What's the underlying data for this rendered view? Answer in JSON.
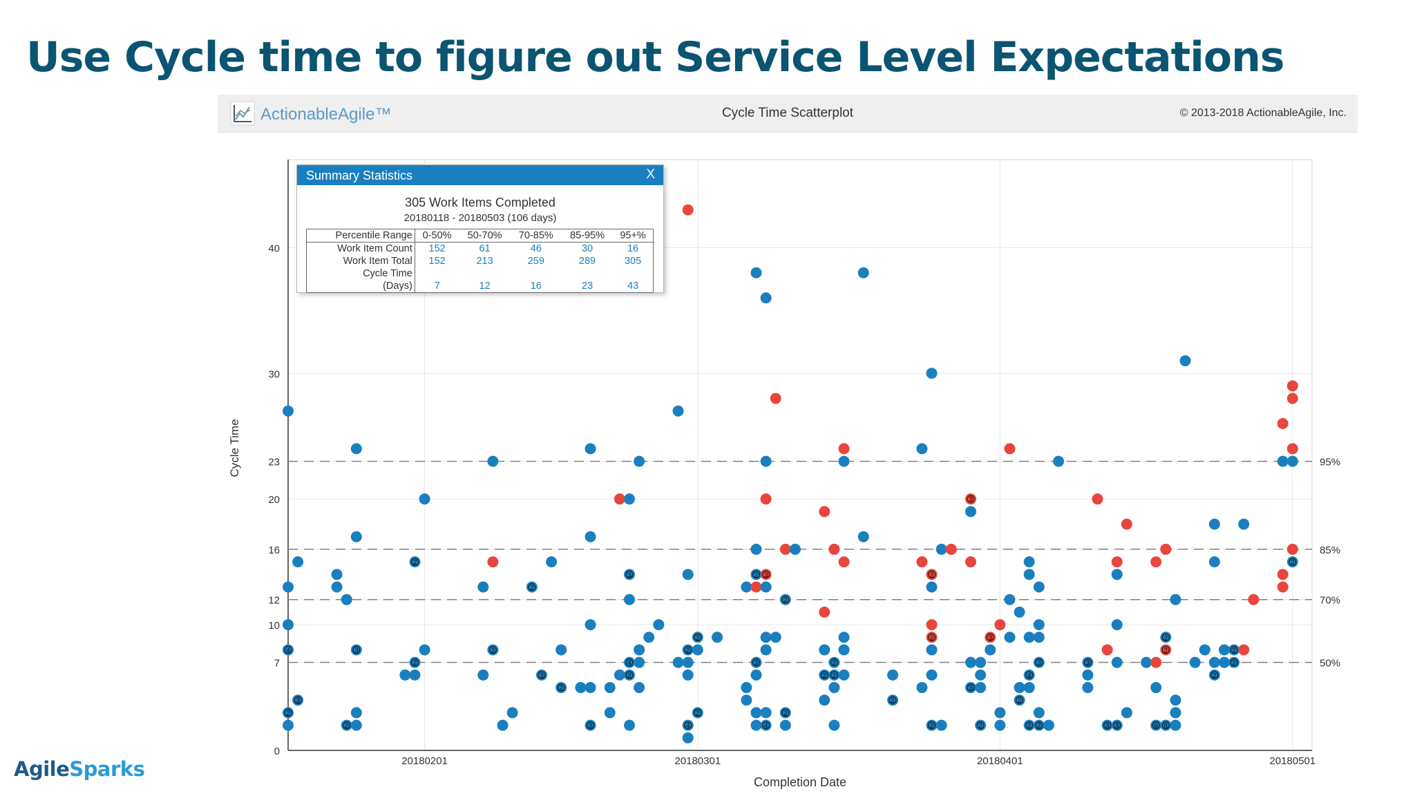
{
  "slide": {
    "title": "Use Cycle time to figure out Service Level Expectations"
  },
  "app": {
    "name": "ActionableAgile™",
    "view_title": "Cycle Time Scatterplot",
    "copyright": "© 2013-2018 ActionableAgile, Inc."
  },
  "summary": {
    "title": "Summary Statistics",
    "close": "X",
    "completed": "305 Work Items Completed",
    "range": "20180118 - 20180503 (106 days)",
    "row_labels": [
      "Percentile Range",
      "Work Item Count",
      "Work Item Total",
      "Cycle Time",
      "(Days)"
    ],
    "ranges": [
      "0-50%",
      "50-70%",
      "70-85%",
      "85-95%",
      "95+%"
    ],
    "counts": [
      "152",
      "61",
      "46",
      "30",
      "16"
    ],
    "totals": [
      "152",
      "213",
      "259",
      "289",
      "305"
    ],
    "cycle_times": [
      "7",
      "12",
      "16",
      "23",
      "43"
    ]
  },
  "footer": {
    "logo_a": "Agile",
    "logo_b": "Sparks"
  },
  "colors": {
    "blue": "#1a7fbf",
    "red": "#e8453c",
    "title": "#0b5472"
  },
  "chart_data": {
    "type": "scatter",
    "xlabel": "Completion Date",
    "ylabel": "Cycle Time",
    "x_start": "20180118",
    "x_end": "20180503",
    "ylim": [
      0,
      47
    ],
    "yticks": [
      0,
      7,
      10,
      12,
      16,
      20,
      23,
      30,
      40
    ],
    "xticks": [
      {
        "date": "20180201",
        "label": "20180201"
      },
      {
        "date": "20180301",
        "label": "20180301"
      },
      {
        "date": "20180401",
        "label": "20180401"
      },
      {
        "date": "20180501",
        "label": "20180501"
      }
    ],
    "percentiles": [
      {
        "label": "50%",
        "value": 7
      },
      {
        "label": "70%",
        "value": 12
      },
      {
        "label": "85%",
        "value": 16
      },
      {
        "label": "95%",
        "value": 23
      }
    ],
    "points": [
      {
        "date": "20180118",
        "y": 27,
        "c": "b"
      },
      {
        "date": "20180118",
        "y": 13,
        "c": "b"
      },
      {
        "date": "20180118",
        "y": 10,
        "c": "b"
      },
      {
        "date": "20180118",
        "y": 8,
        "c": "b",
        "n": 4
      },
      {
        "date": "20180118",
        "y": 3,
        "c": "b",
        "n": 2
      },
      {
        "date": "20180118",
        "y": 2,
        "c": "b"
      },
      {
        "date": "20180119",
        "y": 15,
        "c": "b"
      },
      {
        "date": "20180119",
        "y": 4,
        "c": "b",
        "n": 3
      },
      {
        "date": "20180123",
        "y": 14,
        "c": "b"
      },
      {
        "date": "20180123",
        "y": 13,
        "c": "b"
      },
      {
        "date": "20180124",
        "y": 12,
        "c": "b"
      },
      {
        "date": "20180124",
        "y": 2,
        "c": "b",
        "n": 2
      },
      {
        "date": "20180125",
        "y": 24,
        "c": "b"
      },
      {
        "date": "20180125",
        "y": 17,
        "c": "b"
      },
      {
        "date": "20180125",
        "y": 8,
        "c": "b",
        "n": 3
      },
      {
        "date": "20180125",
        "y": 3,
        "c": "b"
      },
      {
        "date": "20180125",
        "y": 2,
        "c": "b"
      },
      {
        "date": "20180130",
        "y": 6,
        "c": "b"
      },
      {
        "date": "20180131",
        "y": 15,
        "c": "b",
        "n": 2
      },
      {
        "date": "20180131",
        "y": 6,
        "c": "b"
      },
      {
        "date": "20180131",
        "y": 7,
        "c": "b",
        "n": 2
      },
      {
        "date": "20180201",
        "y": 20,
        "c": "b"
      },
      {
        "date": "20180201",
        "y": 8,
        "c": "b"
      },
      {
        "date": "20180207",
        "y": 13,
        "c": "b"
      },
      {
        "date": "20180207",
        "y": 6,
        "c": "b"
      },
      {
        "date": "20180208",
        "y": 23,
        "c": "b"
      },
      {
        "date": "20180208",
        "y": 15,
        "c": "r"
      },
      {
        "date": "20180208",
        "y": 8,
        "c": "b",
        "n": 2
      },
      {
        "date": "20180209",
        "y": 2,
        "c": "b"
      },
      {
        "date": "20180210",
        "y": 3,
        "c": "b"
      },
      {
        "date": "20180212",
        "y": 13,
        "c": "b",
        "n": 2
      },
      {
        "date": "20180213",
        "y": 6,
        "c": "b",
        "n": 3
      },
      {
        "date": "20180214",
        "y": 15,
        "c": "b"
      },
      {
        "date": "20180215",
        "y": 8,
        "c": "b"
      },
      {
        "date": "20180215",
        "y": 5,
        "c": "b",
        "n": 2
      },
      {
        "date": "20180217",
        "y": 5,
        "c": "b"
      },
      {
        "date": "20180218",
        "y": 24,
        "c": "b"
      },
      {
        "date": "20180218",
        "y": 17,
        "c": "b"
      },
      {
        "date": "20180218",
        "y": 10,
        "c": "b"
      },
      {
        "date": "20180218",
        "y": 5,
        "c": "b"
      },
      {
        "date": "20180218",
        "y": 2,
        "c": "b",
        "n": 3
      },
      {
        "date": "20180220",
        "y": 5,
        "c": "b"
      },
      {
        "date": "20180220",
        "y": 3,
        "c": "b"
      },
      {
        "date": "20180221",
        "y": 20,
        "c": "r"
      },
      {
        "date": "20180221",
        "y": 6,
        "c": "b"
      },
      {
        "date": "20180222",
        "y": 20,
        "c": "b"
      },
      {
        "date": "20180222",
        "y": 14,
        "c": "b",
        "n": 3
      },
      {
        "date": "20180222",
        "y": 12,
        "c": "b"
      },
      {
        "date": "20180222",
        "y": 7,
        "c": "b",
        "n": 4
      },
      {
        "date": "20180222",
        "y": 6,
        "c": "b",
        "n": 2
      },
      {
        "date": "20180222",
        "y": 2,
        "c": "b"
      },
      {
        "date": "20180223",
        "y": 23,
        "c": "b"
      },
      {
        "date": "20180223",
        "y": 8,
        "c": "b"
      },
      {
        "date": "20180223",
        "y": 7,
        "c": "b"
      },
      {
        "date": "20180223",
        "y": 5,
        "c": "b"
      },
      {
        "date": "20180224",
        "y": 9,
        "c": "b"
      },
      {
        "date": "20180225",
        "y": 10,
        "c": "b"
      },
      {
        "date": "20180227",
        "y": 27,
        "c": "b"
      },
      {
        "date": "20180227",
        "y": 7,
        "c": "b"
      },
      {
        "date": "20180228",
        "y": 43,
        "c": "r"
      },
      {
        "date": "20180228",
        "y": 14,
        "c": "b"
      },
      {
        "date": "20180228",
        "y": 8,
        "c": "b",
        "n": 2
      },
      {
        "date": "20180228",
        "y": 7,
        "c": "b"
      },
      {
        "date": "20180228",
        "y": 6,
        "c": "b"
      },
      {
        "date": "20180228",
        "y": 2,
        "c": "b",
        "n": 4
      },
      {
        "date": "20180228",
        "y": 1,
        "c": "b"
      },
      {
        "date": "20180301",
        "y": 9,
        "c": "b",
        "n": 2
      },
      {
        "date": "20180301",
        "y": 8,
        "c": "b"
      },
      {
        "date": "20180301",
        "y": 3,
        "c": "b",
        "n": 2
      },
      {
        "date": "20180303",
        "y": 9,
        "c": "b"
      },
      {
        "date": "20180306",
        "y": 13,
        "c": "b"
      },
      {
        "date": "20180306",
        "y": 5,
        "c": "b"
      },
      {
        "date": "20180306",
        "y": 4,
        "c": "b"
      },
      {
        "date": "20180307",
        "y": 38,
        "c": "b"
      },
      {
        "date": "20180307",
        "y": 16,
        "c": "b"
      },
      {
        "date": "20180307",
        "y": 14,
        "c": "b",
        "n": 2
      },
      {
        "date": "20180307",
        "y": 13,
        "c": "r"
      },
      {
        "date": "20180307",
        "y": 7,
        "c": "b",
        "n": 3
      },
      {
        "date": "20180307",
        "y": 6,
        "c": "b"
      },
      {
        "date": "20180307",
        "y": 3,
        "c": "b"
      },
      {
        "date": "20180307",
        "y": 2,
        "c": "b"
      },
      {
        "date": "20180308",
        "y": 36,
        "c": "b"
      },
      {
        "date": "20180308",
        "y": 23,
        "c": "b"
      },
      {
        "date": "20180308",
        "y": 20,
        "c": "r"
      },
      {
        "date": "20180308",
        "y": 14,
        "c": "r",
        "n": 3
      },
      {
        "date": "20180308",
        "y": 13,
        "c": "b"
      },
      {
        "date": "20180308",
        "y": 9,
        "c": "b"
      },
      {
        "date": "20180308",
        "y": 8,
        "c": "b"
      },
      {
        "date": "20180308",
        "y": 3,
        "c": "b"
      },
      {
        "date": "20180308",
        "y": 2,
        "c": "b",
        "n": 4
      },
      {
        "date": "20180309",
        "y": 28,
        "c": "r"
      },
      {
        "date": "20180309",
        "y": 9,
        "c": "b"
      },
      {
        "date": "20180310",
        "y": 16,
        "c": "r"
      },
      {
        "date": "20180310",
        "y": 12,
        "c": "b",
        "n": 2
      },
      {
        "date": "20180310",
        "y": 3,
        "c": "b",
        "n": 2
      },
      {
        "date": "20180310",
        "y": 2,
        "c": "b"
      },
      {
        "date": "20180311",
        "y": 16,
        "c": "b"
      },
      {
        "date": "20180314",
        "y": 19,
        "c": "r"
      },
      {
        "date": "20180314",
        "y": 11,
        "c": "r"
      },
      {
        "date": "20180314",
        "y": 8,
        "c": "b"
      },
      {
        "date": "20180314",
        "y": 6,
        "c": "b",
        "n": 2
      },
      {
        "date": "20180314",
        "y": 4,
        "c": "b"
      },
      {
        "date": "20180315",
        "y": 16,
        "c": "r"
      },
      {
        "date": "20180315",
        "y": 7,
        "c": "b",
        "n": 2
      },
      {
        "date": "20180315",
        "y": 6,
        "c": "b",
        "n": 2
      },
      {
        "date": "20180315",
        "y": 5,
        "c": "b"
      },
      {
        "date": "20180315",
        "y": 2,
        "c": "b"
      },
      {
        "date": "20180316",
        "y": 24,
        "c": "r"
      },
      {
        "date": "20180316",
        "y": 23,
        "c": "b"
      },
      {
        "date": "20180316",
        "y": 15,
        "c": "r"
      },
      {
        "date": "20180316",
        "y": 9,
        "c": "b"
      },
      {
        "date": "20180316",
        "y": 8,
        "c": "b"
      },
      {
        "date": "20180316",
        "y": 6,
        "c": "b"
      },
      {
        "date": "20180318",
        "y": 38,
        "c": "b"
      },
      {
        "date": "20180318",
        "y": 17,
        "c": "b"
      },
      {
        "date": "20180321",
        "y": 6,
        "c": "b"
      },
      {
        "date": "20180321",
        "y": 4,
        "c": "b",
        "n": 2
      },
      {
        "date": "20180324",
        "y": 24,
        "c": "b"
      },
      {
        "date": "20180324",
        "y": 15,
        "c": "r"
      },
      {
        "date": "20180324",
        "y": 5,
        "c": "b"
      },
      {
        "date": "20180325",
        "y": 30,
        "c": "b"
      },
      {
        "date": "20180325",
        "y": 14,
        "c": "r",
        "n": 2
      },
      {
        "date": "20180325",
        "y": 13,
        "c": "b"
      },
      {
        "date": "20180325",
        "y": 10,
        "c": "r"
      },
      {
        "date": "20180325",
        "y": 9,
        "c": "r",
        "n": 2
      },
      {
        "date": "20180325",
        "y": 8,
        "c": "b"
      },
      {
        "date": "20180325",
        "y": 6,
        "c": "b"
      },
      {
        "date": "20180325",
        "y": 2,
        "c": "b",
        "n": 2
      },
      {
        "date": "20180326",
        "y": 16,
        "c": "b"
      },
      {
        "date": "20180326",
        "y": 2,
        "c": "b"
      },
      {
        "date": "20180327",
        "y": 16,
        "c": "r"
      },
      {
        "date": "20180329",
        "y": 20,
        "c": "r",
        "n": 3
      },
      {
        "date": "20180329",
        "y": 19,
        "c": "b"
      },
      {
        "date": "20180329",
        "y": 15,
        "c": "r"
      },
      {
        "date": "20180329",
        "y": 7,
        "c": "b"
      },
      {
        "date": "20180329",
        "y": 5,
        "c": "b",
        "n": 3
      },
      {
        "date": "20180330",
        "y": 7,
        "c": "b"
      },
      {
        "date": "20180330",
        "y": 6,
        "c": "b"
      },
      {
        "date": "20180330",
        "y": 5,
        "c": "b"
      },
      {
        "date": "20180330",
        "y": 2,
        "c": "b",
        "n": 2
      },
      {
        "date": "20180331",
        "y": 9,
        "c": "r",
        "n": 3
      },
      {
        "date": "20180331",
        "y": 8,
        "c": "b"
      },
      {
        "date": "20180401",
        "y": 10,
        "c": "r"
      },
      {
        "date": "20180401",
        "y": 3,
        "c": "b"
      },
      {
        "date": "20180401",
        "y": 2,
        "c": "b"
      },
      {
        "date": "20180402",
        "y": 24,
        "c": "r"
      },
      {
        "date": "20180402",
        "y": 12,
        "c": "b"
      },
      {
        "date": "20180402",
        "y": 9,
        "c": "b"
      },
      {
        "date": "20180403",
        "y": 11,
        "c": "b"
      },
      {
        "date": "20180403",
        "y": 5,
        "c": "b"
      },
      {
        "date": "20180403",
        "y": 4,
        "c": "b",
        "n": 2
      },
      {
        "date": "20180404",
        "y": 15,
        "c": "b"
      },
      {
        "date": "20180404",
        "y": 14,
        "c": "b"
      },
      {
        "date": "20180404",
        "y": 9,
        "c": "b"
      },
      {
        "date": "20180404",
        "y": 6,
        "c": "b",
        "n": 4
      },
      {
        "date": "20180404",
        "y": 5,
        "c": "b"
      },
      {
        "date": "20180404",
        "y": 2,
        "c": "b",
        "n": 2
      },
      {
        "date": "20180405",
        "y": 13,
        "c": "b"
      },
      {
        "date": "20180405",
        "y": 10,
        "c": "b"
      },
      {
        "date": "20180405",
        "y": 9,
        "c": "b"
      },
      {
        "date": "20180405",
        "y": 7,
        "c": "b",
        "n": 3
      },
      {
        "date": "20180405",
        "y": 3,
        "c": "b"
      },
      {
        "date": "20180405",
        "y": 2,
        "c": "b",
        "n": 2
      },
      {
        "date": "20180406",
        "y": 2,
        "c": "b"
      },
      {
        "date": "20180407",
        "y": 23,
        "c": "b"
      },
      {
        "date": "20180410",
        "y": 7,
        "c": "b",
        "n": 3
      },
      {
        "date": "20180410",
        "y": 6,
        "c": "b"
      },
      {
        "date": "20180410",
        "y": 5,
        "c": "b"
      },
      {
        "date": "20180411",
        "y": 20,
        "c": "r"
      },
      {
        "date": "20180412",
        "y": 2,
        "c": "b",
        "n": 3
      },
      {
        "date": "20180413",
        "y": 15,
        "c": "r"
      },
      {
        "date": "20180413",
        "y": 14,
        "c": "b"
      },
      {
        "date": "20180413",
        "y": 10,
        "c": "b"
      },
      {
        "date": "20180413",
        "y": 7,
        "c": "b"
      },
      {
        "date": "20180413",
        "y": 2,
        "c": "b",
        "n": 3
      },
      {
        "date": "20180414",
        "y": 18,
        "c": "r"
      },
      {
        "date": "20180414",
        "y": 3,
        "c": "b"
      },
      {
        "date": "20180412",
        "y": 8,
        "c": "r"
      },
      {
        "date": "20180416",
        "y": 7,
        "c": "b"
      },
      {
        "date": "20180417",
        "y": 15,
        "c": "r"
      },
      {
        "date": "20180417",
        "y": 7,
        "c": "r"
      },
      {
        "date": "20180417",
        "y": 5,
        "c": "b"
      },
      {
        "date": "20180417",
        "y": 2,
        "c": "b",
        "n": 6
      },
      {
        "date": "20180418",
        "y": 16,
        "c": "r"
      },
      {
        "date": "20180418",
        "y": 9,
        "c": "b",
        "n": 2
      },
      {
        "date": "20180418",
        "y": 8,
        "c": "r",
        "n": 2
      },
      {
        "date": "20180418",
        "y": 2,
        "c": "b",
        "n": 8
      },
      {
        "date": "20180419",
        "y": 12,
        "c": "b"
      },
      {
        "date": "20180419",
        "y": 4,
        "c": "b"
      },
      {
        "date": "20180419",
        "y": 3,
        "c": "b"
      },
      {
        "date": "20180419",
        "y": 2,
        "c": "b"
      },
      {
        "date": "20180420",
        "y": 31,
        "c": "b"
      },
      {
        "date": "20180421",
        "y": 7,
        "c": "b"
      },
      {
        "date": "20180422",
        "y": 8,
        "c": "b"
      },
      {
        "date": "20180423",
        "y": 18,
        "c": "b"
      },
      {
        "date": "20180423",
        "y": 15,
        "c": "b"
      },
      {
        "date": "20180423",
        "y": 7,
        "c": "b"
      },
      {
        "date": "20180423",
        "y": 6,
        "c": "b",
        "n": 2
      },
      {
        "date": "20180424",
        "y": 8,
        "c": "b"
      },
      {
        "date": "20180424",
        "y": 7,
        "c": "b"
      },
      {
        "date": "20180425",
        "y": 8,
        "c": "b",
        "n": 2
      },
      {
        "date": "20180425",
        "y": 7,
        "c": "b",
        "n": 2
      },
      {
        "date": "20180426",
        "y": 18,
        "c": "b"
      },
      {
        "date": "20180426",
        "y": 8,
        "c": "r"
      },
      {
        "date": "20180427",
        "y": 12,
        "c": "r"
      },
      {
        "date": "20180430",
        "y": 26,
        "c": "r"
      },
      {
        "date": "20180430",
        "y": 23,
        "c": "b"
      },
      {
        "date": "20180430",
        "y": 14,
        "c": "r"
      },
      {
        "date": "20180430",
        "y": 13,
        "c": "r"
      },
      {
        "date": "20180501",
        "y": 29,
        "c": "r"
      },
      {
        "date": "20180501",
        "y": 28,
        "c": "r"
      },
      {
        "date": "20180501",
        "y": 24,
        "c": "r"
      },
      {
        "date": "20180501",
        "y": 23,
        "c": "b"
      },
      {
        "date": "20180501",
        "y": 16,
        "c": "r"
      },
      {
        "date": "20180501",
        "y": 15,
        "c": "b",
        "n": 2
      }
    ]
  }
}
